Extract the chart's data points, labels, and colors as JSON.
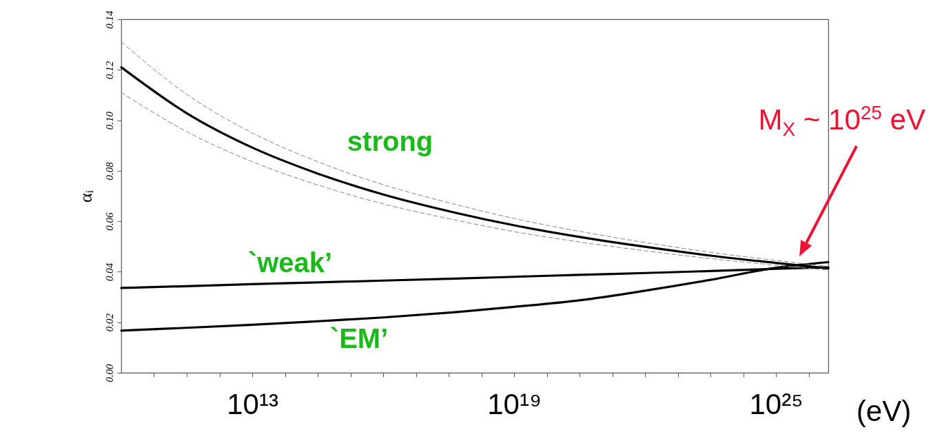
{
  "chart_data": {
    "type": "line",
    "xlabel": "(eV)",
    "ylabel": "αᵢ",
    "log": "x",
    "grid": false,
    "marker": "none",
    "x": [
      10000000000.0,
      316000000000.0,
      10000000000000.0,
      316000000000000.0,
      1e+16,
      4.47e+17,
      1e+19,
      3.16e+20,
      1e+22,
      3.16e+23,
      1e+25,
      1.58e+26
    ],
    "xlim": [
      10000000000.0,
      1.58e+26
    ],
    "xticks": [
      {
        "value": 56200000000.0,
        "label": null
      },
      {
        "value": 316000000000.0,
        "label": null
      },
      {
        "value": 1780000000000.0,
        "label": null
      },
      {
        "value": 10000000000000.0,
        "label": "10¹³"
      },
      {
        "value": 56200000000000.0,
        "label": null
      },
      {
        "value": 316000000000000.0,
        "label": null
      },
      {
        "value": 1780000000000000.0,
        "label": null
      },
      {
        "value": 1e+16,
        "label": null
      },
      {
        "value": 5.62e+16,
        "label": null
      },
      {
        "value": 3.16e+17,
        "label": null
      },
      {
        "value": 1.78e+18,
        "label": null
      },
      {
        "value": 1e+19,
        "label": "10¹⁹"
      },
      {
        "value": 5.62e+19,
        "label": null
      },
      {
        "value": 3.16e+20,
        "label": null
      },
      {
        "value": 1.78e+21,
        "label": null
      },
      {
        "value": 1e+22,
        "label": null
      },
      {
        "value": 5.62e+22,
        "label": null
      },
      {
        "value": 3.16e+23,
        "label": null
      },
      {
        "value": 1.78e+24,
        "label": null
      },
      {
        "value": 1e+25,
        "label": "10²⁵"
      },
      {
        "value": 5.62e+25,
        "label": null
      }
    ],
    "ylim": [
      0,
      0.14
    ],
    "yticks": [
      {
        "value": 0,
        "label": "0.00"
      },
      {
        "value": 0.02,
        "label": "0.02"
      },
      {
        "value": 0.04,
        "label": "0.04"
      },
      {
        "value": 0.06,
        "label": "0.06"
      },
      {
        "value": 0.08,
        "label": "0.08"
      },
      {
        "value": 0.1,
        "label": "0.10"
      },
      {
        "value": 0.12,
        "label": "0.12"
      },
      {
        "value": 0.14,
        "label": "0.14"
      }
    ],
    "series": [
      {
        "name": "strong",
        "color": "#000000",
        "values": [
          0.121,
          0.1028,
          0.0892,
          0.0789,
          0.0706,
          0.0634,
          0.0584,
          0.0538,
          0.0499,
          0.0464,
          0.0435,
          0.0413
        ]
      },
      {
        "name": "`weak’",
        "color": "#000000",
        "values": [
          0.0336,
          0.0343,
          0.0351,
          0.0358,
          0.0365,
          0.0373,
          0.038,
          0.0388,
          0.0395,
          0.0403,
          0.0412,
          0.0418
        ]
      },
      {
        "name": "`EM’",
        "color": "#000000",
        "values": [
          0.0167,
          0.0178,
          0.019,
          0.0204,
          0.0219,
          0.024,
          0.0261,
          0.0287,
          0.0325,
          0.0368,
          0.0416,
          0.0438
        ]
      },
      {
        "color": "#808080",
        "line_style": "dashed",
        "values": [
          0.131,
          0.1103,
          0.095,
          0.0836,
          0.0745,
          0.0667,
          0.0611,
          0.056,
          0.0516,
          0.0477,
          0.0445,
          0.0421
        ]
      },
      {
        "color": "#808080",
        "line_style": "dashed",
        "values": [
          0.111,
          0.0955,
          0.0836,
          0.0744,
          0.0669,
          0.0605,
          0.0559,
          0.0518,
          0.0483,
          0.0452,
          0.0426,
          0.0406
        ]
      }
    ],
    "annotations": [
      "M$_{X}$ ~ 10$^{25}$ eV"
    ]
  }
}
